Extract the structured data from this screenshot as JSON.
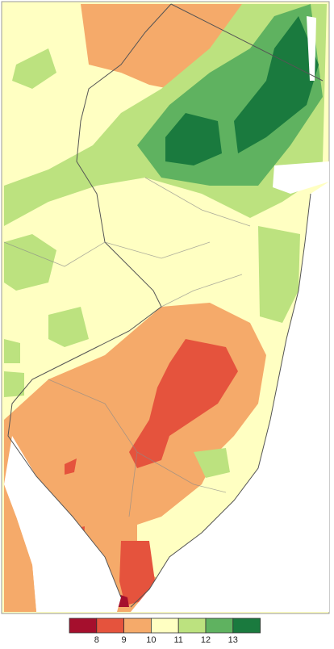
{
  "legend": {
    "colors": [
      "#a50f2d",
      "#e5533d",
      "#f5aa6a",
      "#ffffc2",
      "#bce27f",
      "#5fb260",
      "#1a7a3e"
    ],
    "labels": [
      8,
      9,
      10,
      11,
      12,
      13
    ]
  }
}
